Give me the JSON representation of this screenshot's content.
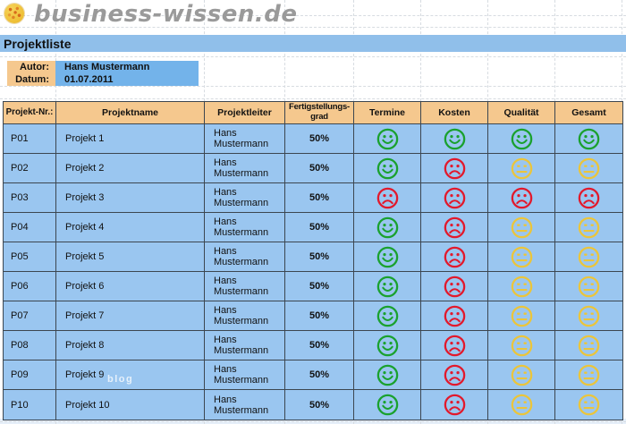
{
  "brand": {
    "title": "business-wissen.de",
    "logo": "sun-logo",
    "logo_color": "#eebf35"
  },
  "page": {
    "title": "Projektliste"
  },
  "meta": {
    "author_label": "Autor:",
    "author_value": "Hans Mustermann",
    "date_label": "Datum:",
    "date_value": "01.07.2011"
  },
  "colors": {
    "banner_blue": "#90bfea",
    "value_blue": "#73b3ea",
    "row_blue": "#9ac6f0",
    "header_tan": "#f5c88e",
    "grid_dark": "#3c4650",
    "status_good": "#1aa12e",
    "status_bad": "#e2192c",
    "status_medium": "#ebc53b"
  },
  "status_styles": {
    "good": {
      "color": "#1aa12e",
      "mood": "smile"
    },
    "bad": {
      "color": "#e2192c",
      "mood": "frown"
    },
    "medium": {
      "color": "#ebc53b",
      "mood": "neutral"
    }
  },
  "watermark": "blog",
  "table": {
    "headers": [
      "Projekt-Nr.:",
      "Projektname",
      "Projektleiter",
      "Fertigstellungs-grad",
      "Termine",
      "Kosten",
      "Qualität",
      "Gesamt"
    ],
    "rows": [
      {
        "nr": "P01",
        "projektname": "Projekt 1",
        "projektleiter": "Hans Mustermann",
        "fertigstellungsgrad": "50%",
        "termine": "good",
        "kosten": "good",
        "qualitaet": "good",
        "gesamt": "good"
      },
      {
        "nr": "P02",
        "projektname": "Projekt 2",
        "projektleiter": "Hans Mustermann",
        "fertigstellungsgrad": "50%",
        "termine": "good",
        "kosten": "bad",
        "qualitaet": "medium",
        "gesamt": "medium"
      },
      {
        "nr": "P03",
        "projektname": "Projekt 3",
        "projektleiter": "Hans Mustermann",
        "fertigstellungsgrad": "50%",
        "termine": "bad",
        "kosten": "bad",
        "qualitaet": "bad",
        "gesamt": "bad"
      },
      {
        "nr": "P04",
        "projektname": "Projekt 4",
        "projektleiter": "Hans Mustermann",
        "fertigstellungsgrad": "50%",
        "termine": "good",
        "kosten": "bad",
        "qualitaet": "medium",
        "gesamt": "medium"
      },
      {
        "nr": "P05",
        "projektname": "Projekt 5",
        "projektleiter": "Hans Mustermann",
        "fertigstellungsgrad": "50%",
        "termine": "good",
        "kosten": "bad",
        "qualitaet": "medium",
        "gesamt": "medium"
      },
      {
        "nr": "P06",
        "projektname": "Projekt 6",
        "projektleiter": "Hans Mustermann",
        "fertigstellungsgrad": "50%",
        "termine": "good",
        "kosten": "bad",
        "qualitaet": "medium",
        "gesamt": "medium"
      },
      {
        "nr": "P07",
        "projektname": "Projekt 7",
        "projektleiter": "Hans Mustermann",
        "fertigstellungsgrad": "50%",
        "termine": "good",
        "kosten": "bad",
        "qualitaet": "medium",
        "gesamt": "medium"
      },
      {
        "nr": "P08",
        "projektname": "Projekt 8",
        "projektleiter": "Hans Mustermann",
        "fertigstellungsgrad": "50%",
        "termine": "good",
        "kosten": "bad",
        "qualitaet": "medium",
        "gesamt": "medium"
      },
      {
        "nr": "P09",
        "projektname": "Projekt 9",
        "projektleiter": "Hans Mustermann",
        "fertigstellungsgrad": "50%",
        "termine": "good",
        "kosten": "bad",
        "qualitaet": "medium",
        "gesamt": "medium"
      },
      {
        "nr": "P10",
        "projektname": "Projekt 10",
        "projektleiter": "Hans Mustermann",
        "fertigstellungsgrad": "50%",
        "termine": "good",
        "kosten": "bad",
        "qualitaet": "medium",
        "gesamt": "medium"
      }
    ]
  }
}
